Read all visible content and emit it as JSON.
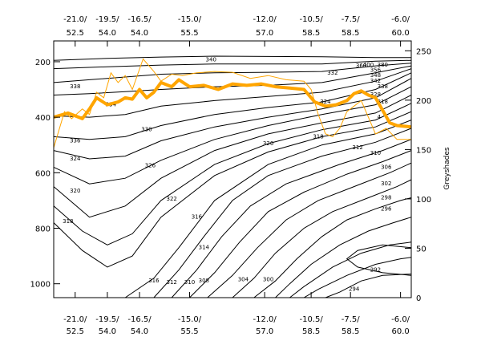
{
  "chart_data": {
    "type": "line",
    "title": "",
    "x_ticks": [
      {
        "top": "-21.0/",
        "bottom": "52.5"
      },
      {
        "top": "-19.5/",
        "bottom": "54.0"
      },
      {
        "top": "-16.5/",
        "bottom": "54.0"
      },
      {
        "top": "-15.0/",
        "bottom": "55.5"
      },
      {
        "top": "-12.0/",
        "bottom": "57.0"
      },
      {
        "top": "-10.5/",
        "bottom": "58.5"
      },
      {
        "top": "-7.5/",
        "bottom": "58.5"
      },
      {
        "top": "-6.0/",
        "bottom": "60.0"
      }
    ],
    "y_left_ticks": [
      "200",
      "400",
      "600",
      "800",
      "1000"
    ],
    "y_left_range": [
      1050,
      125
    ],
    "y_right_ticks": [
      "0",
      "50",
      "100",
      "150",
      "200",
      "250"
    ],
    "y_right_range": [
      0,
      260
    ],
    "y_right_label": "Greyshades",
    "contour_labels": [
      {
        "text": "340",
        "x": 0.44,
        "y": 193
      },
      {
        "text": "338",
        "x": 0.06,
        "y": 290
      },
      {
        "text": "334",
        "x": 0.16,
        "y": 355
      },
      {
        "text": "330",
        "x": 0.26,
        "y": 445
      },
      {
        "text": "336",
        "x": 0.06,
        "y": 485
      },
      {
        "text": "324",
        "x": 0.06,
        "y": 550
      },
      {
        "text": "326",
        "x": 0.27,
        "y": 575
      },
      {
        "text": "322",
        "x": 0.33,
        "y": 695
      },
      {
        "text": "320",
        "x": 0.06,
        "y": 665
      },
      {
        "text": "318",
        "x": 0.04,
        "y": 775
      },
      {
        "text": "316",
        "x": 0.4,
        "y": 760
      },
      {
        "text": "314",
        "x": 0.42,
        "y": 870
      },
      {
        "text": "316",
        "x": 0.28,
        "y": 990
      },
      {
        "text": "312",
        "x": 0.33,
        "y": 995
      },
      {
        "text": "310",
        "x": 0.38,
        "y": 995
      },
      {
        "text": "308",
        "x": 0.42,
        "y": 990
      },
      {
        "text": "304",
        "x": 0.53,
        "y": 985
      },
      {
        "text": "300",
        "x": 0.6,
        "y": 985
      },
      {
        "text": "320",
        "x": 0.6,
        "y": 495
      },
      {
        "text": "318",
        "x": 0.74,
        "y": 470
      },
      {
        "text": "324",
        "x": 0.76,
        "y": 345
      },
      {
        "text": "312",
        "x": 0.85,
        "y": 510
      },
      {
        "text": "310",
        "x": 0.9,
        "y": 530
      },
      {
        "text": "306",
        "x": 0.93,
        "y": 580
      },
      {
        "text": "302",
        "x": 0.93,
        "y": 640
      },
      {
        "text": "298",
        "x": 0.93,
        "y": 690
      },
      {
        "text": "296",
        "x": 0.93,
        "y": 730
      },
      {
        "text": "292",
        "x": 0.9,
        "y": 950
      },
      {
        "text": "294",
        "x": 0.84,
        "y": 1020
      },
      {
        "text": "332",
        "x": 0.78,
        "y": 240
      },
      {
        "text": "360",
        "x": 0.86,
        "y": 215
      },
      {
        "text": "400",
        "x": 0.88,
        "y": 212
      },
      {
        "text": "380",
        "x": 0.92,
        "y": 212
      },
      {
        "text": "356",
        "x": 0.9,
        "y": 230
      },
      {
        "text": "348",
        "x": 0.9,
        "y": 250
      },
      {
        "text": "342",
        "x": 0.9,
        "y": 270
      },
      {
        "text": "338",
        "x": 0.92,
        "y": 290
      },
      {
        "text": "328",
        "x": 0.9,
        "y": 318
      },
      {
        "text": "318",
        "x": 0.92,
        "y": 345
      },
      {
        "text": "4",
        "x": 0.91,
        "y": 400
      }
    ],
    "series": [
      {
        "type": "contour",
        "color": "#000000",
        "lines": [
          {
            "x": [
              0.0,
              0.15,
              0.3,
              0.45,
              0.6,
              0.75,
              0.9,
              1.0
            ],
            "y": [
              195,
              188,
              183,
              180,
              181,
              182,
              185,
              185
            ]
          },
          {
            "x": [
              0.0,
              0.15,
              0.3,
              0.45,
              0.6,
              0.75,
              0.9,
              1.0
            ],
            "y": [
              225,
              218,
              212,
              208,
              208,
              208,
              198,
              195
            ]
          },
          {
            "x": [
              0.0,
              0.1,
              0.2,
              0.3,
              0.45,
              0.6,
              0.75,
              0.9,
              1.0
            ],
            "y": [
              275,
              265,
              255,
              245,
              240,
              238,
              235,
              215,
              205
            ]
          },
          {
            "x": [
              0.0,
              0.1,
              0.2,
              0.3,
              0.45,
              0.6,
              0.75,
              0.9,
              1.0
            ],
            "y": [
              320,
              315,
              308,
              300,
              290,
              285,
              275,
              240,
              215
            ]
          },
          {
            "x": [
              0.0,
              0.1,
              0.2,
              0.3,
              0.45,
              0.6,
              0.75,
              0.9,
              1.0
            ],
            "y": [
              395,
              400,
              390,
              360,
              340,
              325,
              310,
              270,
              225
            ]
          },
          {
            "x": [
              0.0,
              0.1,
              0.2,
              0.3,
              0.45,
              0.6,
              0.75,
              0.9,
              1.0
            ],
            "y": [
              470,
              480,
              470,
              430,
              390,
              365,
              345,
              300,
              240
            ]
          },
          {
            "x": [
              0.0,
              0.1,
              0.2,
              0.3,
              0.45,
              0.6,
              0.75,
              0.9,
              1.0
            ],
            "y": [
              520,
              550,
              540,
              485,
              435,
              400,
              370,
              330,
              260
            ]
          },
          {
            "x": [
              0.0,
              0.1,
              0.2,
              0.3,
              0.45,
              0.6,
              0.75,
              0.9,
              1.0
            ],
            "y": [
              580,
              640,
              620,
              555,
              480,
              430,
              390,
              355,
              290
            ]
          },
          {
            "x": [
              0.0,
              0.1,
              0.2,
              0.3,
              0.45,
              0.6,
              0.75,
              0.9,
              1.0
            ],
            "y": [
              650,
              760,
              720,
              620,
              520,
              460,
              420,
              385,
              320
            ]
          },
          {
            "x": [
              0.0,
              0.08,
              0.15,
              0.22,
              0.3,
              0.45,
              0.6,
              0.75,
              0.9,
              1.0
            ],
            "y": [
              720,
              810,
              860,
              820,
              700,
              570,
              495,
              445,
              410,
              350
            ]
          },
          {
            "x": [
              0.0,
              0.08,
              0.15,
              0.22,
              0.3,
              0.45,
              0.6,
              0.75,
              0.9,
              1.0
            ],
            "y": [
              780,
              880,
              940,
              900,
              760,
              610,
              525,
              470,
              435,
              380
            ]
          },
          {
            "x": [
              0.2,
              0.28,
              0.35,
              0.45,
              0.6,
              0.75,
              0.9,
              1.0
            ],
            "y": [
              1050,
              980,
              870,
              700,
              570,
              500,
              460,
              410
            ]
          },
          {
            "x": [
              0.28,
              0.35,
              0.42,
              0.5,
              0.6,
              0.75,
              0.9,
              1.0
            ],
            "y": [
              1050,
              950,
              830,
              700,
              610,
              540,
              490,
              440
            ]
          },
          {
            "x": [
              0.33,
              0.4,
              0.47,
              0.55,
              0.65,
              0.8,
              0.92,
              1.0
            ],
            "y": [
              1050,
              950,
              830,
              720,
              640,
              570,
              520,
              480
            ]
          },
          {
            "x": [
              0.38,
              0.45,
              0.52,
              0.6,
              0.7,
              0.82,
              0.92,
              1.0
            ],
            "y": [
              1050,
              960,
              850,
              740,
              670,
              605,
              560,
              520
            ]
          },
          {
            "x": [
              0.43,
              0.5,
              0.57,
              0.65,
              0.74,
              0.85,
              0.94,
              1.0
            ],
            "y": [
              1050,
              970,
              870,
              770,
              700,
              645,
              600,
              565
            ]
          },
          {
            "x": [
              0.5,
              0.56,
              0.62,
              0.7,
              0.78,
              0.88,
              0.96,
              1.0
            ],
            "y": [
              1050,
              980,
              890,
              800,
              740,
              690,
              650,
              625
            ]
          },
          {
            "x": [
              0.56,
              0.62,
              0.68,
              0.75,
              0.82,
              0.9,
              0.97,
              1.0
            ],
            "y": [
              1050,
              990,
              910,
              830,
              770,
              730,
              700,
              690
            ]
          },
          {
            "x": [
              0.62,
              0.66,
              0.72,
              0.8,
              0.88,
              0.95,
              1.0
            ],
            "y": [
              1050,
              1000,
              930,
              860,
              810,
              780,
              760
            ]
          },
          {
            "x": [
              0.66,
              0.7,
              0.78,
              0.86,
              0.94,
              1.0
            ],
            "y": [
              1050,
              1010,
              940,
              890,
              860,
              850
            ]
          },
          {
            "x": [
              0.7,
              0.74,
              0.82,
              0.9,
              0.97,
              1.0
            ],
            "y": [
              1050,
              1020,
              970,
              930,
              910,
              905
            ]
          },
          {
            "x": [
              0.76,
              0.8,
              0.86,
              0.92,
              1.0
            ],
            "y": [
              1050,
              1030,
              990,
              970,
              965
            ]
          },
          {
            "x": [
              1.0,
              0.92,
              0.85,
              0.82,
              0.85,
              0.92,
              1.0
            ],
            "y": [
              870,
              860,
              880,
              910,
              940,
              960,
              970
            ]
          }
        ]
      },
      {
        "type": "line",
        "color": "#ffa500",
        "thin": {
          "x": [
            0.0,
            0.03,
            0.05,
            0.08,
            0.1,
            0.12,
            0.14,
            0.16,
            0.18,
            0.2,
            0.22,
            0.25,
            0.28,
            0.3,
            0.33,
            0.36,
            0.4,
            0.45,
            0.5,
            0.55,
            0.6,
            0.65,
            0.7,
            0.72,
            0.74,
            0.76,
            0.78,
            0.8,
            0.82,
            0.84,
            0.86,
            0.88,
            0.9,
            0.93,
            0.96,
            1.0
          ],
          "y": [
            510,
            380,
            405,
            370,
            390,
            310,
            330,
            240,
            275,
            250,
            300,
            190,
            235,
            270,
            245,
            250,
            240,
            235,
            238,
            260,
            250,
            265,
            270,
            300,
            390,
            460,
            470,
            440,
            380,
            360,
            340,
            400,
            460,
            440,
            480,
            480
          ]
        },
        "thick": {
          "x": [
            0.0,
            0.04,
            0.08,
            0.1,
            0.12,
            0.15,
            0.18,
            0.2,
            0.22,
            0.24,
            0.26,
            0.28,
            0.3,
            0.33,
            0.35,
            0.38,
            0.42,
            0.46,
            0.5,
            0.54,
            0.58,
            0.62,
            0.66,
            0.7,
            0.73,
            0.76,
            0.79,
            0.82,
            0.84,
            0.86,
            0.88,
            0.9,
            0.92,
            0.94,
            0.96,
            1.0
          ],
          "y": [
            400,
            385,
            405,
            370,
            330,
            355,
            345,
            330,
            335,
            300,
            330,
            310,
            275,
            290,
            265,
            290,
            285,
            300,
            280,
            285,
            280,
            290,
            295,
            300,
            345,
            360,
            355,
            340,
            315,
            305,
            320,
            330,
            375,
            420,
            430,
            435
          ]
        }
      }
    ]
  }
}
